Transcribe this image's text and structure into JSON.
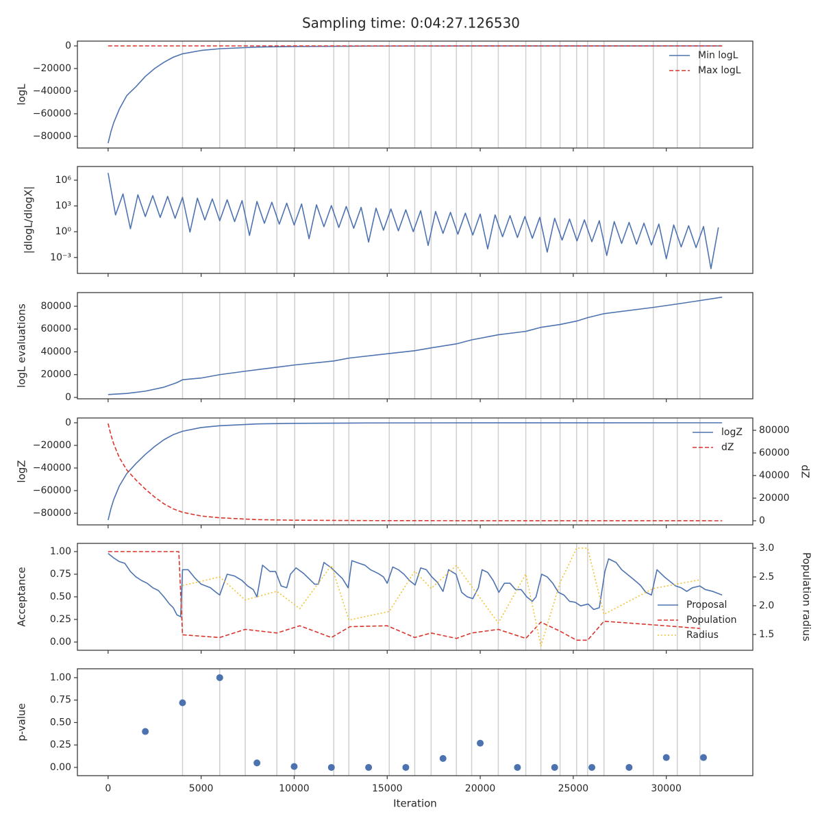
{
  "title": "Sampling time: 0:04:27.126530",
  "vlines": [
    4000,
    6000,
    7370,
    9070,
    10030,
    12130,
    12940,
    15110,
    16480,
    17360,
    18720,
    19540,
    20970,
    22450,
    23260,
    24290,
    25180,
    25770,
    26650,
    29300,
    30590,
    31810
  ],
  "chart_data": [
    {
      "type": "line",
      "ylabel": "logL",
      "legend": "upper right",
      "xlim": [
        -1650,
        34650
      ],
      "xticks": [
        0,
        5000,
        10000,
        15000,
        20000,
        25000,
        30000
      ],
      "ylim": [
        -90300,
        4240
      ],
      "yticks": [
        {
          "value": -80000,
          "label": "−80000"
        },
        {
          "value": -60000,
          "label": "−60000"
        },
        {
          "value": -40000,
          "label": "−40000"
        },
        {
          "value": -20000,
          "label": "−20000"
        },
        0
      ],
      "series": [
        {
          "name": "Min logL",
          "color": "#4c72b0",
          "style": "solid",
          "x": [
            0,
            150,
            300,
            600,
            1000,
            1500,
            2000,
            2500,
            3000,
            3500,
            4000,
            5000,
            6000,
            8000,
            10000,
            14000,
            20000,
            33000
          ],
          "values": [
            -86000,
            -76000,
            -68000,
            -56000,
            -44000,
            -36000,
            -27000,
            -20000,
            -14500,
            -10000,
            -7000,
            -4000,
            -2500,
            -1000,
            -500,
            -150,
            -30,
            0
          ]
        },
        {
          "name": "Max logL",
          "color": "#d9342b",
          "style": "dashed",
          "x": [
            0,
            33000
          ],
          "values": [
            0,
            0
          ]
        }
      ]
    },
    {
      "type": "line",
      "ylabel": "|dlogL/dlogX|",
      "yscale": "log",
      "xlim": [
        -1650,
        34650
      ],
      "xticks": [
        0,
        5000,
        10000,
        15000,
        20000,
        25000,
        30000
      ],
      "ylim": [
        1.4e-05,
        39000000
      ],
      "yticks": [
        {
          "value": 0.001,
          "label": "10⁻³"
        },
        {
          "value": 1,
          "label": "10⁰"
        },
        {
          "value": 1000,
          "label": "10³"
        },
        {
          "value": 1000000,
          "label": "10⁶"
        }
      ],
      "series": [
        {
          "color": "#4c72b0",
          "style": "solid",
          "x": [
            0,
            400,
            800,
            1200,
            1600,
            2000,
            2400,
            2800,
            3200,
            3600,
            4000,
            4400,
            4800,
            5200,
            5600,
            6000,
            6400,
            6800,
            7200,
            7600,
            8000,
            8400,
            8800,
            9200,
            9600,
            10000,
            10400,
            10800,
            11200,
            11600,
            12000,
            12400,
            12800,
            13200,
            13600,
            14000,
            14400,
            14800,
            15200,
            15600,
            16000,
            16400,
            16800,
            17200,
            17600,
            18000,
            18400,
            18800,
            19200,
            19600,
            20000,
            20400,
            20800,
            21200,
            21600,
            22000,
            22400,
            22800,
            23200,
            23600,
            24000,
            24400,
            24800,
            25200,
            25600,
            26000,
            26400,
            26800,
            27200,
            27600,
            28000,
            28400,
            28800,
            29200,
            29600,
            30000,
            30400,
            30800,
            31200,
            31600,
            32000,
            32400,
            32800
          ],
          "values": [
            7000000,
            89,
            25000,
            2.2,
            20000,
            58,
            16000,
            46,
            13000,
            36,
            10000,
            0.9,
            8000,
            23,
            6600,
            19,
            5200,
            15,
            4200,
            0.37,
            3300,
            9.5,
            2700,
            7.6,
            2100,
            6,
            1700,
            0.15,
            1350,
            3.8,
            1100,
            3.1,
            870,
            2.5,
            690,
            0.062,
            550,
            1.5,
            450,
            1.26,
            355,
            1,
            280,
            0.025,
            224,
            0.63,
            182,
            0.51,
            145,
            0.41,
            115,
            0.01,
            91,
            0.26,
            74,
            0.21,
            59,
            0.17,
            47,
            0.0042,
            37,
            0.105,
            30,
            0.085,
            24,
            0.068,
            19,
            0.0017,
            15,
            0.043,
            12,
            0.035,
            9.8,
            0.028,
            7.8,
            0.0007,
            6.2,
            0.017,
            5,
            0.014,
            4,
            5e-05,
            3.2
          ]
        }
      ]
    },
    {
      "type": "line",
      "ylabel": "logL evaluations",
      "xlim": [
        -1650,
        34650
      ],
      "xticks": [
        0,
        5000,
        10000,
        15000,
        20000,
        25000,
        30000
      ],
      "ylim": [
        -1200,
        92000
      ],
      "yticks": [
        0,
        20000,
        40000,
        60000,
        80000
      ],
      "series": [
        {
          "color": "#4c72b0",
          "style": "solid",
          "x": [
            0,
            1000,
            2000,
            3000,
            3700,
            4000,
            5000,
            6000,
            7370,
            9070,
            10030,
            12130,
            12940,
            15110,
            16480,
            17360,
            18720,
            19540,
            20970,
            22450,
            23260,
            24290,
            25180,
            25770,
            26650,
            29300,
            30590,
            31810,
            33000
          ],
          "values": [
            2500,
            3500,
            5500,
            9000,
            13000,
            15500,
            17000,
            20000,
            23000,
            26500,
            28500,
            32000,
            34500,
            38500,
            41000,
            43500,
            47000,
            50500,
            55000,
            58000,
            61500,
            64000,
            67000,
            70000,
            73500,
            79000,
            82000,
            85000,
            88000
          ]
        }
      ]
    },
    {
      "type": "line",
      "ylabel": "logZ",
      "y2label": "dZ",
      "legend": "upper right",
      "xlim": [
        -1650,
        34650
      ],
      "xticks": [
        0,
        5000,
        10000,
        15000,
        20000,
        25000,
        30000
      ],
      "ylim": [
        -90300,
        4240
      ],
      "yticks": [
        {
          "value": -80000,
          "label": "−80000"
        },
        {
          "value": -60000,
          "label": "−60000"
        },
        {
          "value": -40000,
          "label": "−40000"
        },
        {
          "value": -20000,
          "label": "−20000"
        },
        0
      ],
      "y2lim": [
        -3640,
        90900
      ],
      "y2ticks": [
        0,
        20000,
        40000,
        60000,
        80000
      ],
      "series": [
        {
          "name": "logZ",
          "color": "#4c72b0",
          "style": "solid",
          "x": [
            0,
            150,
            300,
            600,
            1000,
            1500,
            2000,
            2500,
            3000,
            3500,
            4000,
            5000,
            6000,
            8000,
            10000,
            14000,
            20000,
            33000
          ],
          "values": [
            -86000,
            -76000,
            -68000,
            -56000,
            -45000,
            -36000,
            -28000,
            -21000,
            -15000,
            -10500,
            -7500,
            -4200,
            -2600,
            -1000,
            -500,
            -150,
            -30,
            0
          ]
        },
        {
          "name": "dZ",
          "color": "#d9342b",
          "style": "dashed",
          "axis": "y2",
          "x": [
            0,
            150,
            300,
            600,
            1000,
            1500,
            2000,
            2500,
            3000,
            3500,
            4000,
            5000,
            6000,
            8000,
            10000,
            14000,
            20000,
            33000
          ],
          "values": [
            86000,
            76000,
            68000,
            56000,
            45000,
            36000,
            28000,
            21000,
            15000,
            10500,
            7500,
            4200,
            2600,
            1000,
            500,
            150,
            30,
            0
          ]
        }
      ]
    },
    {
      "type": "line",
      "ylabel": "Acceptance",
      "y2label": "Population radius",
      "legend": "lower right",
      "xlim": [
        -1650,
        34650
      ],
      "xticks": [
        0,
        5000,
        10000,
        15000,
        20000,
        25000,
        30000
      ],
      "ylim": [
        -0.091,
        1.091
      ],
      "yticks": [
        {
          "value": 0,
          "label": "0.00"
        },
        0.25,
        {
          "value": 0.5,
          "label": "0.50"
        },
        0.75,
        {
          "value": 1,
          "label": "1.00"
        }
      ],
      "y2lim": [
        1.226,
        3.083
      ],
      "y2ticks": [
        1.5,
        {
          "value": 2,
          "label": "2.0"
        },
        2.5,
        {
          "value": 3,
          "label": "3.0"
        }
      ],
      "series": [
        {
          "name": "Proposal",
          "color": "#4c72b0",
          "style": "solid",
          "x": [
            0,
            300,
            600,
            900,
            1200,
            1500,
            1800,
            2100,
            2400,
            2700,
            3000,
            3300,
            3500,
            3700,
            3900,
            4000,
            4300,
            4700,
            5000,
            5500,
            5800,
            6000,
            6400,
            6800,
            7200,
            7500,
            7800,
            8000,
            8300,
            8700,
            9000,
            9300,
            9600,
            9800,
            10100,
            10500,
            10800,
            11100,
            11300,
            11600,
            12000,
            12300,
            12600,
            12900,
            13100,
            13500,
            13800,
            14100,
            14500,
            14800,
            15000,
            15300,
            15600,
            15900,
            16200,
            16500,
            16800,
            17100,
            17400,
            17700,
            18000,
            18300,
            18700,
            19000,
            19300,
            19600,
            19900,
            20100,
            20400,
            20700,
            21000,
            21300,
            21600,
            21900,
            22200,
            22500,
            22800,
            23000,
            23300,
            23600,
            23900,
            24200,
            24500,
            24800,
            25100,
            25400,
            25800,
            26100,
            26400,
            26700,
            26900,
            27300,
            27600,
            27900,
            28200,
            28600,
            28900,
            29200,
            29500,
            29900,
            30200,
            30500,
            30800,
            31100,
            31400,
            31800,
            32100,
            32500,
            33000
          ],
          "values": [
            0.98,
            0.93,
            0.89,
            0.87,
            0.78,
            0.72,
            0.68,
            0.65,
            0.6,
            0.57,
            0.5,
            0.42,
            0.38,
            0.3,
            0.28,
            0.8,
            0.8,
            0.7,
            0.64,
            0.6,
            0.55,
            0.52,
            0.75,
            0.73,
            0.68,
            0.62,
            0.58,
            0.5,
            0.85,
            0.78,
            0.78,
            0.62,
            0.6,
            0.75,
            0.82,
            0.76,
            0.7,
            0.64,
            0.64,
            0.88,
            0.82,
            0.76,
            0.7,
            0.6,
            0.9,
            0.87,
            0.85,
            0.8,
            0.76,
            0.72,
            0.65,
            0.83,
            0.8,
            0.75,
            0.68,
            0.63,
            0.82,
            0.8,
            0.72,
            0.66,
            0.56,
            0.8,
            0.75,
            0.55,
            0.5,
            0.48,
            0.6,
            0.8,
            0.77,
            0.68,
            0.55,
            0.65,
            0.65,
            0.58,
            0.58,
            0.5,
            0.45,
            0.5,
            0.75,
            0.72,
            0.65,
            0.55,
            0.52,
            0.45,
            0.44,
            0.4,
            0.42,
            0.36,
            0.38,
            0.78,
            0.92,
            0.88,
            0.8,
            0.75,
            0.7,
            0.63,
            0.55,
            0.52,
            0.8,
            0.72,
            0.67,
            0.62,
            0.6,
            0.56,
            0.6,
            0.62,
            0.58,
            0.56,
            0.52
          ]
        },
        {
          "name": "Population",
          "color": "#d9342b",
          "style": "dashed",
          "x": [
            0,
            3800,
            4000,
            6000,
            7370,
            9070,
            10300,
            12000,
            13000,
            15000,
            16480,
            17360,
            18720,
            19540,
            20970,
            22450,
            23260,
            24290,
            25180,
            25770,
            26650,
            29300,
            30590,
            31810
          ],
          "values": [
            1.0,
            1.0,
            0.08,
            0.05,
            0.14,
            0.1,
            0.18,
            0.05,
            0.17,
            0.18,
            0.05,
            0.1,
            0.04,
            0.1,
            0.14,
            0.04,
            0.22,
            0.12,
            0.02,
            0.02,
            0.23,
            0.19,
            0.17,
            0.15
          ]
        },
        {
          "name": "Radius",
          "color": "#f2c12e",
          "style": "dotted",
          "axis": "y2",
          "x": [
            4000,
            6000,
            7370,
            9070,
            10300,
            12000,
            12940,
            15110,
            16480,
            17360,
            18720,
            20970,
            22450,
            23260,
            24290,
            25180,
            25770,
            26650,
            29300,
            31810
          ],
          "values": [
            2.35,
            2.5,
            2.1,
            2.25,
            1.95,
            2.7,
            1.75,
            1.9,
            2.6,
            2.3,
            2.7,
            1.7,
            2.55,
            1.3,
            2.4,
            3.0,
            3.0,
            1.85,
            2.3,
            2.45
          ]
        }
      ]
    },
    {
      "type": "scatter",
      "ylabel": "p-value",
      "xlabel": "Iteration",
      "xlim": [
        -1650,
        34650
      ],
      "xticks": [
        0,
        5000,
        10000,
        15000,
        20000,
        25000,
        30000
      ],
      "ylim": [
        -0.092,
        1.099
      ],
      "yticks": [
        {
          "value": 0,
          "label": "0.00"
        },
        0.25,
        {
          "value": 0.5,
          "label": "0.50"
        },
        0.75,
        {
          "value": 1,
          "label": "1.00"
        }
      ],
      "series": [
        {
          "color": "#4c72b0",
          "x": [
            2000,
            4000,
            6000,
            8000,
            10000,
            12000,
            14000,
            16000,
            18000,
            20000,
            22000,
            24000,
            26000,
            28000,
            30000,
            32000
          ],
          "values": [
            0.4,
            0.72,
            1.0,
            0.05,
            0.01,
            0.0,
            0.0,
            0.0,
            0.1,
            0.27,
            0.0,
            0.0,
            0.0,
            0.0,
            0.11,
            0.11
          ]
        }
      ]
    }
  ]
}
